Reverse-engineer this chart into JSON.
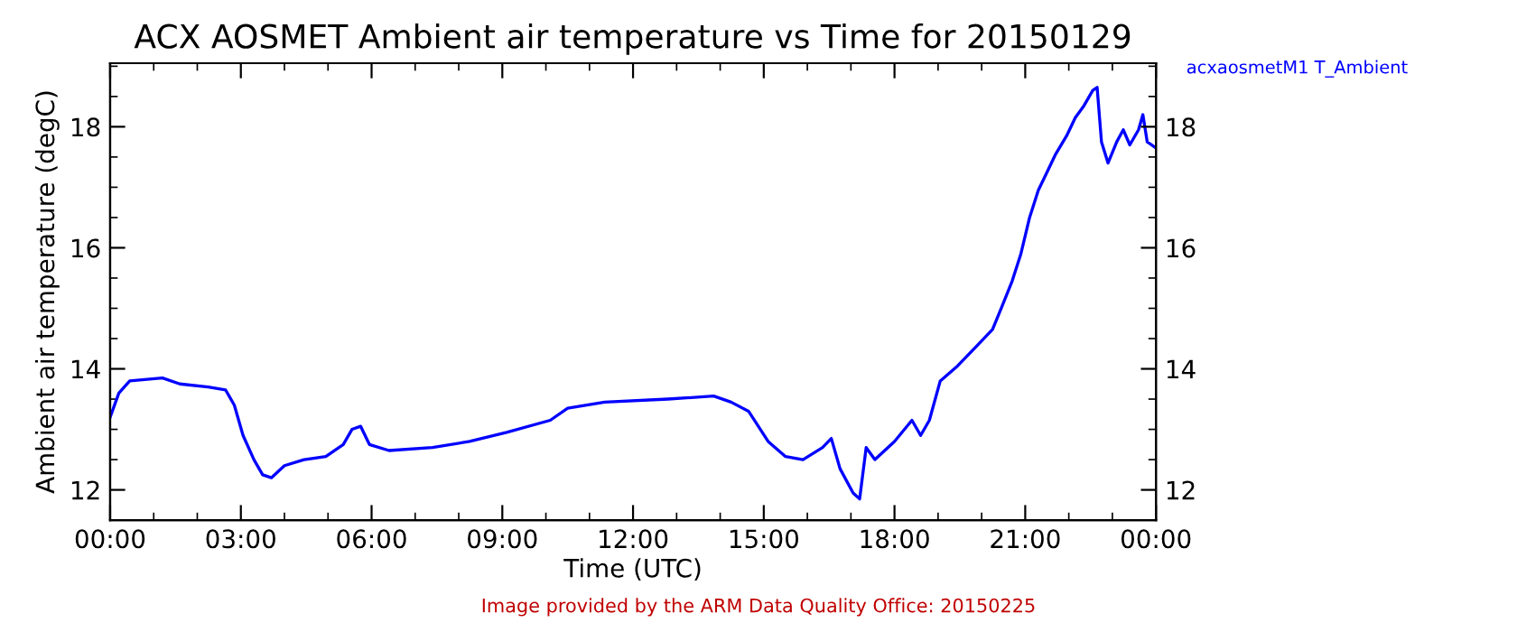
{
  "chart_data": {
    "type": "line",
    "title": "ACX AOSMET Ambient air temperature vs Time for 20150129",
    "xlabel": "Time (UTC)",
    "ylabel": "Ambient air temperature (degC)",
    "annotations": [
      "Image provided by the ARM Data Quality Office: 20150225"
    ],
    "xlim": [
      0,
      24
    ],
    "xticks": [
      {
        "value": 0,
        "label": "00:00"
      },
      {
        "value": 3,
        "label": "03:00"
      },
      {
        "value": 6,
        "label": "06:00"
      },
      {
        "value": 9,
        "label": "09:00"
      },
      {
        "value": 12,
        "label": "12:00"
      },
      {
        "value": 15,
        "label": "15:00"
      },
      {
        "value": 18,
        "label": "18:00"
      },
      {
        "value": 21,
        "label": "21:00"
      },
      {
        "value": 24,
        "label": "00:00"
      }
    ],
    "ylim": [
      11.5,
      19.05
    ],
    "yticks": [
      12,
      14,
      16,
      18
    ],
    "y2lim": [
      11.5,
      19.05
    ],
    "y2ticks": [
      12,
      14,
      16,
      18
    ],
    "legend": "top right",
    "grid": false,
    "series": [
      {
        "name": "acxaosmetM1 T_Ambient",
        "color": "#0000ff",
        "x": [
          0,
          0.2,
          0.45,
          1.2,
          1.6,
          2.25,
          2.65,
          2.85,
          3.05,
          3.3,
          3.5,
          3.7,
          4.0,
          4.45,
          4.95,
          5.35,
          5.55,
          5.75,
          5.95,
          6.4,
          7.4,
          8.25,
          9.1,
          10.1,
          10.5,
          11.35,
          12.8,
          13.85,
          14.25,
          14.65,
          15.1,
          15.5,
          15.9,
          16.35,
          16.55,
          16.75,
          17.05,
          17.2,
          17.35,
          17.55,
          18.0,
          18.4,
          18.6,
          18.8,
          19.05,
          19.45,
          19.85,
          20.25,
          20.45,
          20.7,
          20.9,
          21.1,
          21.3,
          21.5,
          21.7,
          21.95,
          22.15,
          22.35,
          22.55,
          22.65,
          22.75,
          22.9,
          23.1,
          23.25,
          23.4,
          23.6,
          23.7,
          23.8,
          24.0
        ],
        "values": [
          13.2,
          13.6,
          13.8,
          13.85,
          13.75,
          13.7,
          13.65,
          13.4,
          12.9,
          12.5,
          12.25,
          12.2,
          12.4,
          12.5,
          12.55,
          12.75,
          13.0,
          13.05,
          12.75,
          12.65,
          12.7,
          12.8,
          12.95,
          13.15,
          13.35,
          13.45,
          13.5,
          13.55,
          13.45,
          13.3,
          12.8,
          12.55,
          12.5,
          12.7,
          12.85,
          12.35,
          11.95,
          11.85,
          12.7,
          12.5,
          12.8,
          13.15,
          12.9,
          13.15,
          13.8,
          14.05,
          14.35,
          14.65,
          15.0,
          15.45,
          15.9,
          16.5,
          16.95,
          17.25,
          17.55,
          17.85,
          18.15,
          18.35,
          18.6,
          18.65,
          17.75,
          17.4,
          17.75,
          17.95,
          17.7,
          17.95,
          18.2,
          17.75,
          17.65
        ]
      }
    ]
  }
}
